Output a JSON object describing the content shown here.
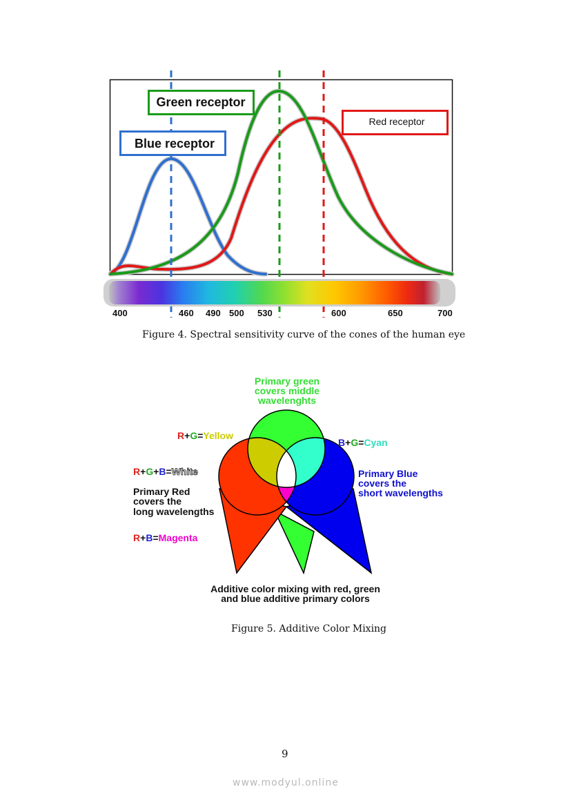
{
  "figure4": {
    "caption": "Figure 4. Spectral sensitivity curve of the cones of the human eye",
    "labels": {
      "green": "Green receptor",
      "blue": "Blue receptor",
      "red": "Red receptor"
    },
    "ticks": [
      "400",
      "460",
      "490",
      "500",
      "530",
      "600",
      "650",
      "700"
    ],
    "colors": {
      "blue": "#2f6fcf",
      "green": "#1a9a1a",
      "red": "#e01818"
    }
  },
  "figure5": {
    "caption": "Figure 5. Additive Color Mixing",
    "green_desc": [
      "Primary green",
      "covers middle",
      "wavelenghts"
    ],
    "blue_desc": [
      "Primary Blue",
      "covers the",
      "short wavelengths"
    ],
    "red_desc": [
      "Primary Red",
      "covers the",
      "long wavelengths"
    ],
    "bottom": [
      "Additive color mixing with red, green",
      "and blue additive primary colors"
    ],
    "yellow_eq": {
      "r": "R",
      "plus1": "+",
      "g": "G",
      "eq": "=",
      "result": "Yellow"
    },
    "cyan_eq": {
      "b": "B",
      "plus1": "+",
      "g": "G",
      "eq": "=",
      "result": "Cyan"
    },
    "white_eq": {
      "r": "R",
      "plus1": "+",
      "g": "G",
      "plus2": "+",
      "b": "B",
      "eq": "=",
      "result": "White"
    },
    "magenta_eq": {
      "r": "R",
      "plus1": "+",
      "b": "B",
      "eq": "=",
      "result": "Magenta"
    },
    "colors": {
      "red": "#ff3300",
      "green": "#33ff33",
      "blue": "#0000ee",
      "yellow": "#cccc00",
      "cyan": "#33ffcc",
      "magenta": "#ff00cc"
    }
  },
  "page_number": "9",
  "watermark": "www.modyul.online"
}
